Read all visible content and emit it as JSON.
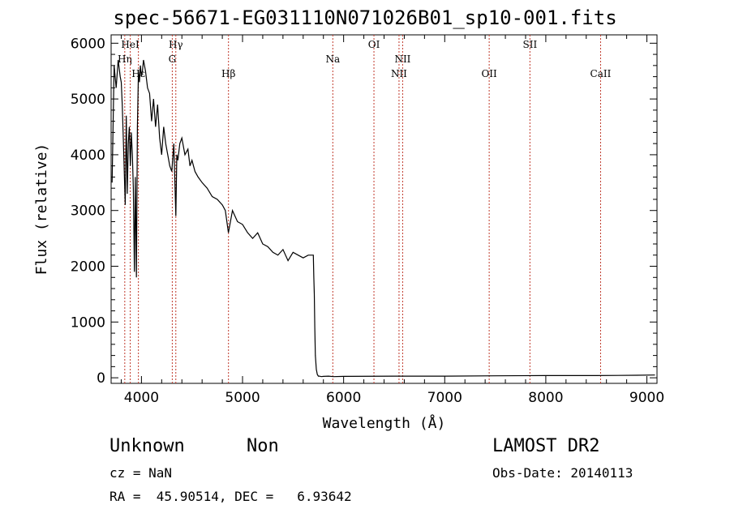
{
  "title": "spec-56671-EG031110N071026B01_sp10-001.fits",
  "chart_data": {
    "type": "line",
    "xlabel": "Wavelength (Å)",
    "ylabel": "Flux (relative)",
    "xlim": [
      3700,
      9100
    ],
    "ylim": [
      -100,
      6150
    ],
    "xticks": [
      4000,
      5000,
      6000,
      7000,
      8000,
      9000
    ],
    "yticks": [
      0,
      1000,
      2000,
      3000,
      4000,
      5000,
      6000
    ],
    "grid": false,
    "line_color": "#000000",
    "marker_color": "#c0392b",
    "series": [
      {
        "x": [
          3710,
          3730,
          3750,
          3770,
          3790,
          3800,
          3810,
          3820,
          3830,
          3840,
          3850,
          3860,
          3870,
          3880,
          3890,
          3900,
          3910,
          3920,
          3930,
          3940,
          3950,
          3960,
          3970,
          3980,
          3990,
          4000,
          4010,
          4020,
          4040,
          4060,
          4080,
          4100,
          4120,
          4140,
          4160,
          4180,
          4200,
          4220,
          4240,
          4260,
          4280,
          4300,
          4320,
          4340,
          4350,
          4360,
          4380,
          4400,
          4430,
          4460,
          4480,
          4500,
          4530,
          4560,
          4600,
          4650,
          4700,
          4750,
          4800,
          4830,
          4860,
          4880,
          4900,
          4950,
          5000,
          5050,
          5100,
          5150,
          5200,
          5250,
          5300,
          5350,
          5400,
          5450,
          5500,
          5550,
          5600,
          5650,
          5700,
          5705,
          5710,
          5715,
          5720,
          5730,
          5740,
          5750,
          5760,
          5780,
          5800,
          5850,
          5900,
          6000,
          6500,
          7000,
          7500,
          8000,
          8500,
          8900,
          9080
        ],
        "y": [
          3500,
          5600,
          5200,
          5700,
          5400,
          5300,
          4900,
          4300,
          3700,
          3100,
          4700,
          3300,
          4200,
          4500,
          3800,
          4400,
          4000,
          3400,
          1900,
          3600,
          1800,
          4500,
          5500,
          5300,
          5600,
          5400,
          5500,
          5700,
          5500,
          5200,
          5100,
          4600,
          5000,
          4500,
          4900,
          4300,
          4000,
          4500,
          4200,
          4000,
          3800,
          3700,
          4200,
          2900,
          4000,
          3900,
          4200,
          4300,
          4000,
          4100,
          3800,
          3900,
          3700,
          3600,
          3500,
          3400,
          3250,
          3200,
          3100,
          3000,
          2600,
          2800,
          3000,
          2800,
          2750,
          2600,
          2500,
          2600,
          2400,
          2350,
          2250,
          2200,
          2300,
          2100,
          2250,
          2200,
          2150,
          2200,
          2200,
          1800,
          1500,
          900,
          400,
          150,
          60,
          30,
          30,
          20,
          25,
          30,
          20,
          25,
          30,
          30,
          35,
          40,
          40,
          45,
          50
        ]
      }
    ],
    "lines": [
      {
        "x": 3835,
        "label": "Hη",
        "row": 2
      },
      {
        "x": 3889,
        "label": "HeI",
        "row": 1
      },
      {
        "x": 3970,
        "label": "Hε",
        "row": 3
      },
      {
        "x": 4305,
        "label": "G",
        "row": 2
      },
      {
        "x": 4340,
        "label": "Hγ",
        "row": 1
      },
      {
        "x": 4861,
        "label": "Hβ",
        "row": 3
      },
      {
        "x": 5893,
        "label": "Na",
        "row": 2
      },
      {
        "x": 6300,
        "label": "OI",
        "row": 1
      },
      {
        "x": 6548,
        "label": "NII",
        "row": 3
      },
      {
        "x": 6584,
        "label": "NII",
        "row": 2
      },
      {
        "x": 7440,
        "label": "OII",
        "row": 3
      },
      {
        "x": 7843,
        "label": "SII",
        "row": 1
      },
      {
        "x": 8542,
        "label": "CaII",
        "row": 3
      }
    ]
  },
  "footer": {
    "object_class": "Unknown",
    "subclass": "Non",
    "cz": "cz = NaN",
    "coords": "RA =  45.90514, DEC =   6.93642",
    "survey": "LAMOST DR2",
    "obs_date": "Obs-Date: 20140113"
  }
}
